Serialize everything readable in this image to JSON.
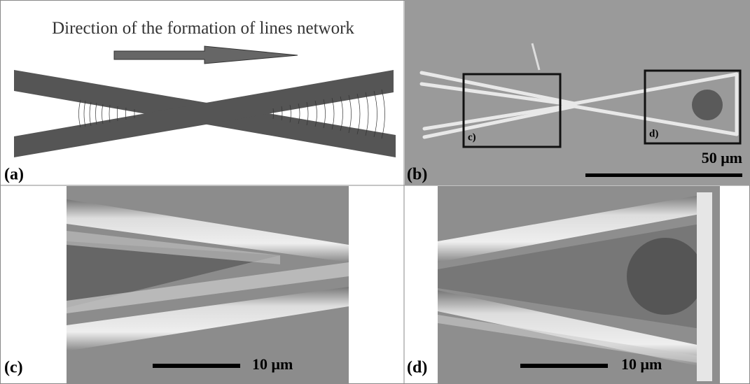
{
  "panels": {
    "a": {
      "label": "(a)",
      "caption": "Direction of the formation of lines network"
    },
    "b": {
      "label": "(b)",
      "box_c": "c)",
      "box_d": "d)",
      "scale": "50 μm"
    },
    "c": {
      "label": "(c)",
      "scale": "10 μm"
    },
    "d": {
      "label": "(d)",
      "scale": "10 μm"
    }
  }
}
